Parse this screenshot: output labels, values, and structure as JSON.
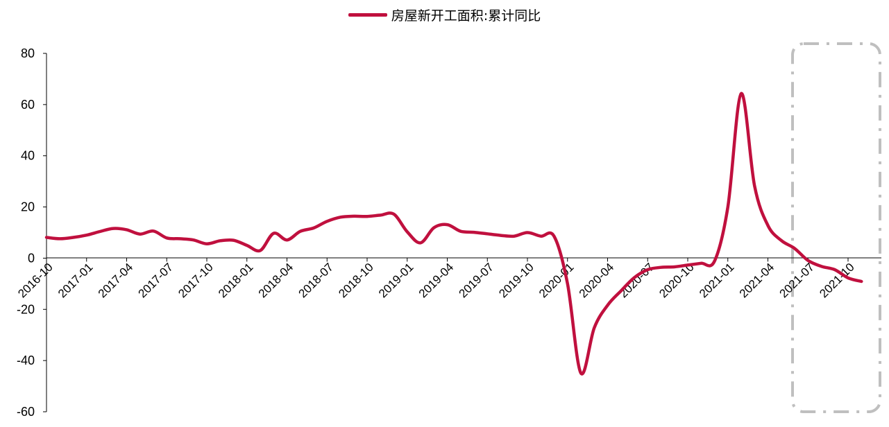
{
  "chart_data": {
    "type": "line",
    "title": "",
    "xlabel": "",
    "ylabel": "",
    "ylim": [
      -60,
      80
    ],
    "yticks": [
      80,
      60,
      40,
      20,
      0,
      -20,
      -40,
      -60
    ],
    "xtick_labels": [
      "2016-10",
      "2017-01",
      "2017-04",
      "2017-07",
      "2017-10",
      "2018-01",
      "2018-04",
      "2018-07",
      "2018-10",
      "2019-01",
      "2019-04",
      "2019-07",
      "2019-10",
      "2020-01",
      "2020-04",
      "2020-07",
      "2020-10",
      "2021-01",
      "2021-04",
      "2021-07",
      "2021-10"
    ],
    "grid": false,
    "legend": "top-center",
    "series": [
      {
        "name": "房屋新开工面积:累计同比",
        "color": "#C0103E",
        "points": [
          [
            "2016-10",
            8.1
          ],
          [
            "2016-11",
            7.6
          ],
          [
            "2016-12",
            8.1
          ],
          [
            "2017-01",
            9.0
          ],
          [
            "2017-02",
            10.4
          ],
          [
            "2017-03",
            11.6
          ],
          [
            "2017-04",
            11.1
          ],
          [
            "2017-05",
            9.4
          ],
          [
            "2017-06",
            10.6
          ],
          [
            "2017-07",
            7.9
          ],
          [
            "2017-08",
            7.6
          ],
          [
            "2017-09",
            7.1
          ],
          [
            "2017-10",
            5.6
          ],
          [
            "2017-11",
            6.8
          ],
          [
            "2017-12",
            7.0
          ],
          [
            "2018-01",
            5.0
          ],
          [
            "2018-02",
            3.0
          ],
          [
            "2018-03",
            9.7
          ],
          [
            "2018-04",
            7.1
          ],
          [
            "2018-05",
            10.5
          ],
          [
            "2018-06",
            11.8
          ],
          [
            "2018-07",
            14.4
          ],
          [
            "2018-08",
            16.0
          ],
          [
            "2018-09",
            16.4
          ],
          [
            "2018-10",
            16.3
          ],
          [
            "2018-11",
            16.8
          ],
          [
            "2018-12",
            17.2
          ],
          [
            "2019-01",
            10.3
          ],
          [
            "2019-02",
            6.0
          ],
          [
            "2019-03",
            11.9
          ],
          [
            "2019-04",
            13.1
          ],
          [
            "2019-05",
            10.5
          ],
          [
            "2019-06",
            10.1
          ],
          [
            "2019-07",
            9.5
          ],
          [
            "2019-08",
            8.9
          ],
          [
            "2019-09",
            8.6
          ],
          [
            "2019-10",
            10.0
          ],
          [
            "2019-11",
            8.6
          ],
          [
            "2019-12",
            8.5
          ],
          [
            "2020-01",
            -10.0
          ],
          [
            "2020-02",
            -44.9
          ],
          [
            "2020-03",
            -27.2
          ],
          [
            "2020-04",
            -18.4
          ],
          [
            "2020-05",
            -12.8
          ],
          [
            "2020-06",
            -7.6
          ],
          [
            "2020-07",
            -4.5
          ],
          [
            "2020-08",
            -3.6
          ],
          [
            "2020-09",
            -3.4
          ],
          [
            "2020-10",
            -2.7
          ],
          [
            "2020-11",
            -2.0
          ],
          [
            "2020-12",
            -1.2
          ],
          [
            "2021-01",
            20.0
          ],
          [
            "2021-02",
            64.3
          ],
          [
            "2021-03",
            28.2
          ],
          [
            "2021-04",
            12.8
          ],
          [
            "2021-05",
            6.9
          ],
          [
            "2021-06",
            3.8
          ],
          [
            "2021-07",
            -0.9
          ],
          [
            "2021-08",
            -3.2
          ],
          [
            "2021-09",
            -4.5
          ],
          [
            "2021-10",
            -7.7
          ],
          [
            "2021-11",
            -9.1
          ]
        ]
      }
    ],
    "annotation": {
      "type": "dash-dot-box",
      "color": "#BFBFBF",
      "x_range": [
        "2021-06",
        "2021-11"
      ]
    }
  }
}
